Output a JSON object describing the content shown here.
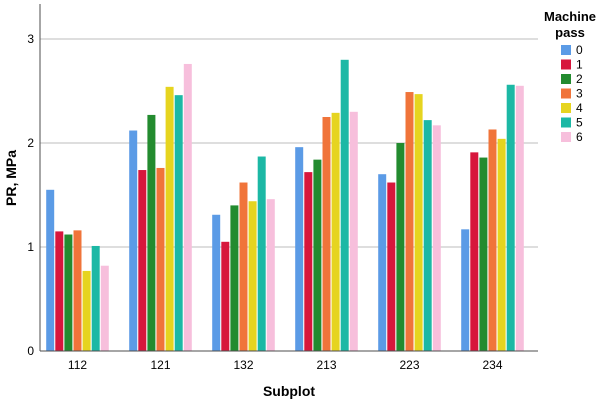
{
  "chart_data": {
    "type": "bar",
    "xlabel": "Subplot",
    "ylabel": "PR, MPa",
    "ylim": [
      0,
      3.2
    ],
    "yticks": [
      "0",
      "1",
      "2",
      "3"
    ],
    "grid": "horizontal",
    "legend_title": "Machine pass",
    "legend_title_lines": [
      "Machine",
      "pass"
    ],
    "legend_position": "right",
    "categories": [
      "112",
      "121",
      "132",
      "213",
      "223",
      "234"
    ],
    "series": [
      {
        "name": "0",
        "color": "#5b9be6",
        "values": [
          1.55,
          2.12,
          1.31,
          1.96,
          1.7,
          1.17
        ]
      },
      {
        "name": "1",
        "color": "#d7163c",
        "values": [
          1.15,
          1.74,
          1.05,
          1.72,
          1.62,
          1.91
        ]
      },
      {
        "name": "2",
        "color": "#238b2f",
        "values": [
          1.12,
          2.27,
          1.4,
          1.84,
          2.0,
          1.86
        ]
      },
      {
        "name": "3",
        "color": "#f0743a",
        "values": [
          1.16,
          1.76,
          1.62,
          2.25,
          2.49,
          2.13
        ]
      },
      {
        "name": "4",
        "color": "#e6d41f",
        "values": [
          0.77,
          2.54,
          1.44,
          2.29,
          2.47,
          2.04
        ]
      },
      {
        "name": "5",
        "color": "#1cb8a5",
        "values": [
          1.01,
          2.46,
          1.87,
          2.8,
          2.22,
          2.56
        ]
      },
      {
        "name": "6",
        "color": "#f7bfdc",
        "values": [
          0.82,
          2.76,
          1.46,
          2.3,
          2.17,
          2.55
        ]
      }
    ]
  }
}
